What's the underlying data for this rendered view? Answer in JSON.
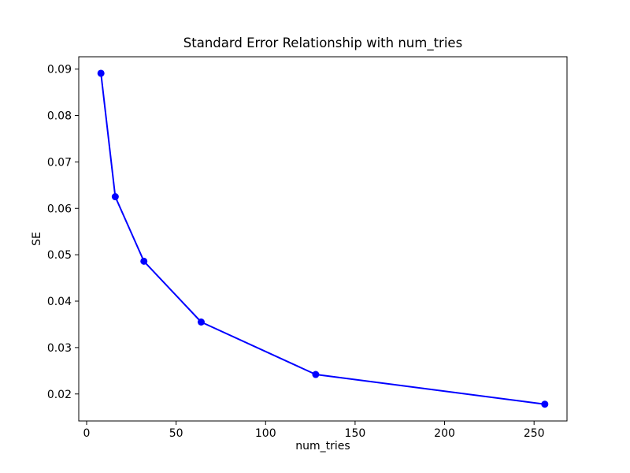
{
  "figure": {
    "background": "#ffffff"
  },
  "chart_data": {
    "type": "line",
    "title": "Standard Error Relationship with num_tries",
    "xlabel": "num_tries",
    "ylabel": "SE",
    "series": [
      {
        "name": "SE",
        "x": [
          8,
          16,
          32,
          64,
          128,
          256
        ],
        "y": [
          0.0891,
          0.0625,
          0.0486,
          0.0355,
          0.0242,
          0.0178
        ],
        "color": "#0000ff",
        "marker": "circle",
        "marker_radius": 4.5,
        "line_width": 2
      }
    ],
    "xlim": [
      -4.4,
      268.4
    ],
    "ylim": [
      0.014183,
      0.092658
    ],
    "xticks": [
      0,
      50,
      100,
      150,
      200,
      250
    ],
    "xtick_labels": [
      "0",
      "50",
      "100",
      "150",
      "200",
      "250"
    ],
    "yticks": [
      0.02,
      0.03,
      0.04,
      0.05,
      0.06,
      0.07,
      0.08,
      0.09
    ],
    "ytick_labels": [
      "0.02",
      "0.03",
      "0.04",
      "0.05",
      "0.06",
      "0.07",
      "0.08",
      "0.09"
    ],
    "grid": false,
    "frame_color": "#000000"
  }
}
